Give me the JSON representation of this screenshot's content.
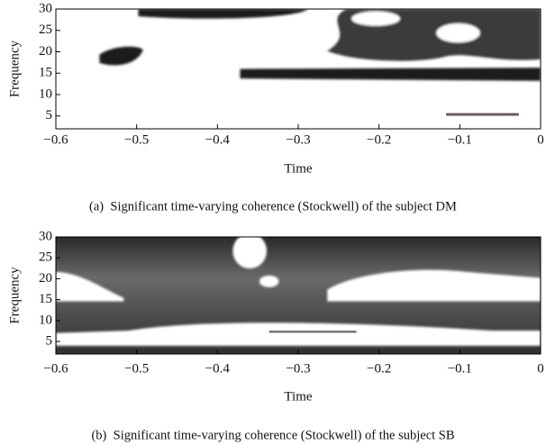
{
  "chart_data": [
    {
      "type": "heatmap",
      "xlabel": "Time",
      "ylabel": "Frequency",
      "caption": "(a)  Significant time-varying coherence (Stockwell) of the subject DM",
      "xlim": [
        -0.6,
        0
      ],
      "ylim": [
        2,
        30
      ],
      "xticks": [
        {
          "value": -0.6,
          "label": "−0.6"
        },
        {
          "value": -0.5,
          "label": "−0.5"
        },
        {
          "value": -0.4,
          "label": "−0.4"
        },
        {
          "value": -0.3,
          "label": "−0.3"
        },
        {
          "value": -0.2,
          "label": "−0.2"
        },
        {
          "value": -0.1,
          "label": "−0.1"
        },
        0
      ],
      "yticks": [
        5,
        10,
        15,
        20,
        25,
        30
      ]
    },
    {
      "type": "heatmap",
      "xlabel": "Time",
      "ylabel": "Frequency",
      "caption": "(b)  Significant time-varying coherence (Stockwell) of the subject SB",
      "xlim": [
        -0.6,
        0
      ],
      "ylim": [
        2,
        30
      ],
      "xticks": [
        {
          "value": -0.6,
          "label": "−0.6"
        },
        {
          "value": -0.5,
          "label": "−0.5"
        },
        {
          "value": -0.4,
          "label": "−0.4"
        },
        {
          "value": -0.3,
          "label": "−0.3"
        },
        {
          "value": -0.2,
          "label": "−0.2"
        },
        {
          "value": -0.1,
          "label": "−0.1"
        },
        0
      ],
      "yticks": [
        5,
        10,
        15,
        20,
        25,
        30
      ]
    }
  ]
}
